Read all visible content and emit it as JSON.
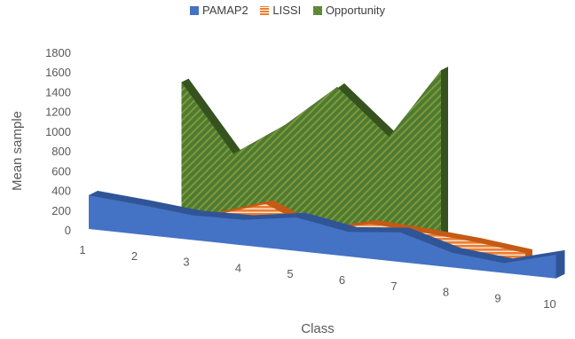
{
  "chart_data": {
    "type": "area",
    "view": "3d",
    "xlabel": "Class",
    "ylabel": "Mean sample",
    "categories": [
      "1",
      "2",
      "3",
      "4",
      "5",
      "6",
      "7",
      "8",
      "9",
      "10"
    ],
    "ylim": [
      0,
      1800
    ],
    "yticks": [
      "0",
      "200",
      "400",
      "600",
      "800",
      "1000",
      "1200",
      "1400",
      "1600",
      "1800"
    ],
    "legend_position": "top",
    "gridlines": false,
    "series": [
      {
        "name": "PAMAP2",
        "color": "#4472C4",
        "values": [
          340,
          300,
          250,
          260,
          340,
          250,
          300,
          150,
          100,
          240
        ]
      },
      {
        "name": "LISSI",
        "color": "#ED7D31",
        "pattern": "horizontal-stripes",
        "values": [
          0,
          40,
          170,
          340,
          120,
          250,
          220,
          180,
          120,
          null
        ]
      },
      {
        "name": "Opportunity",
        "color": "#548235",
        "pattern": "diagonal-stripes",
        "values": [
          null,
          1380,
          710,
          1060,
          1500,
          1050,
          1780,
          null,
          null,
          null
        ]
      }
    ]
  }
}
